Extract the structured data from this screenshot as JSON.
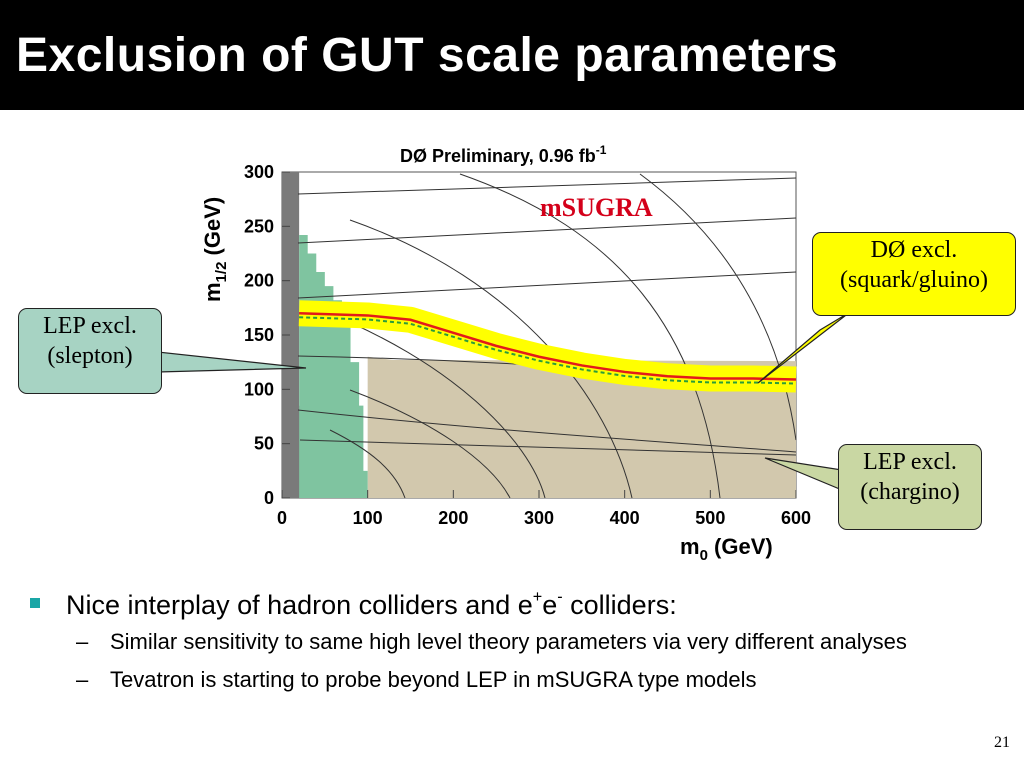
{
  "slide": {
    "title": "Exclusion of GUT scale parameters",
    "page_number": "21",
    "colors": {
      "title_bg": "#000000",
      "bullet_marker": "#1aa6a6",
      "callout_dzero": "#ffff00",
      "callout_lep_slepton": "#a7d3c3",
      "callout_lep_chargino": "#c9d7a3"
    }
  },
  "plot": {
    "title_main": "DØ Preliminary, 0.96 fb",
    "title_sup": "-1",
    "model_label": "mSUGRA",
    "x_label_main": "m",
    "x_label_sub": "0",
    "x_label_unit": " (GeV)",
    "y_label_main": "m",
    "y_label_sub": "1/2",
    "y_label_unit": " (GeV)",
    "x_ticks": [
      "0",
      "100",
      "200",
      "300",
      "400",
      "500",
      "600"
    ],
    "y_ticks": [
      "0",
      "50",
      "100",
      "150",
      "200",
      "250",
      "300"
    ]
  },
  "chart_data": {
    "type": "area",
    "x_unit": "m0 (GeV)",
    "y_unit": "m1/2 (GeV)",
    "xlim": [
      0,
      600
    ],
    "ylim": [
      0,
      300
    ],
    "dzero_exclusion_limit": {
      "x": [
        20,
        100,
        150,
        200,
        250,
        300,
        350,
        400,
        450,
        500,
        550,
        600
      ],
      "y": [
        170,
        168,
        164,
        152,
        140,
        130,
        122,
        116,
        112,
        110,
        110,
        109
      ]
    },
    "lep_chargino_limit": {
      "x": [
        100,
        130,
        600
      ],
      "y": [
        130,
        127,
        126
      ]
    },
    "lep_slepton_limit": {
      "x": [
        20,
        30,
        40,
        50,
        60,
        70,
        80,
        90,
        95
      ],
      "y": [
        242,
        225,
        208,
        195,
        182,
        162,
        125,
        85,
        25
      ]
    },
    "theoretically_excluded": {
      "x": [
        0,
        20,
        20,
        30,
        45,
        60,
        70,
        75
      ],
      "y": [
        300,
        300,
        85,
        80,
        60,
        40,
        25,
        0
      ]
    }
  },
  "callouts": {
    "dzero": [
      "DØ excl.",
      "(squark/gluino)"
    ],
    "lep_slepton": [
      "LEP excl.",
      "(slepton)"
    ],
    "lep_chargino": [
      "LEP excl.",
      "(chargino)"
    ]
  },
  "bullets": {
    "main": {
      "pre": "Nice interplay of hadron colliders and e",
      "sup1": "+",
      "mid": "e",
      "sup2": "-",
      "post": " colliders:"
    },
    "sub": [
      "Similar sensitivity to same high level theory parameters via very different analyses",
      "Tevatron is starting to probe beyond LEP in mSUGRA type models"
    ],
    "dash": "–"
  }
}
